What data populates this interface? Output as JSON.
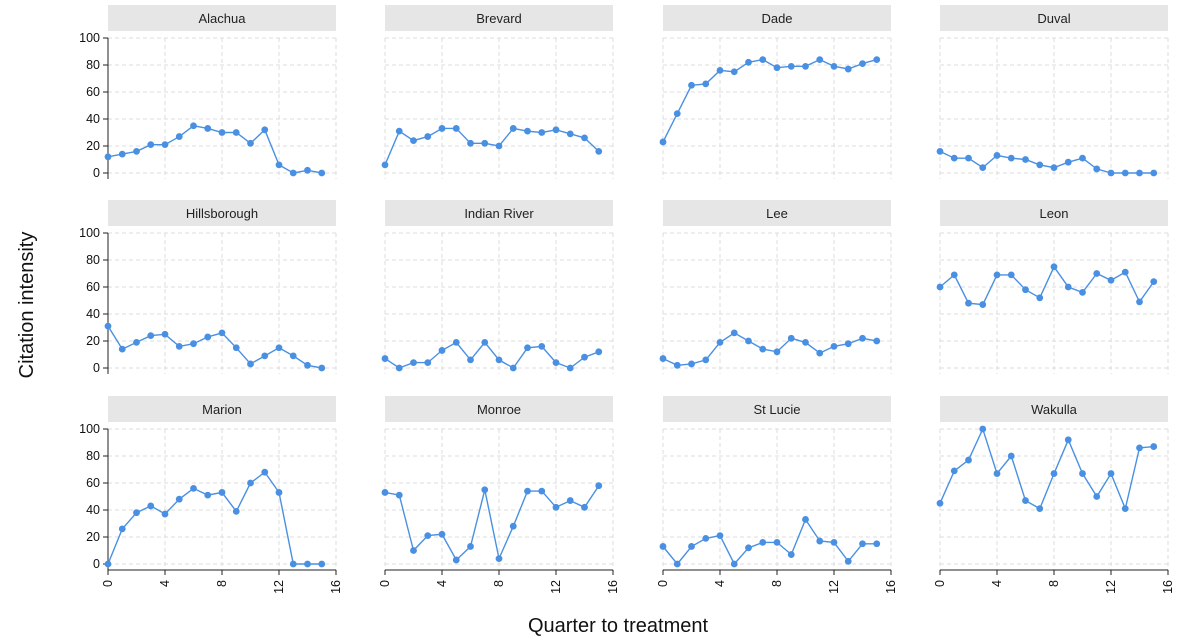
{
  "chart_data": {
    "type": "line",
    "xlabel": "Quarter to treatment",
    "ylabel": "Citation intensity",
    "xlim": [
      0,
      16
    ],
    "ylim": [
      0,
      100
    ],
    "xticks": [
      0,
      4,
      8,
      12,
      16
    ],
    "yticks": [
      0,
      20,
      40,
      60,
      80,
      100
    ],
    "grid": true,
    "line_color": "#4a90e2",
    "x": [
      0,
      1,
      2,
      3,
      4,
      5,
      6,
      7,
      8,
      9,
      10,
      11,
      12,
      13,
      14,
      15
    ],
    "panels": [
      {
        "title": "Alachua",
        "values": [
          12,
          14,
          16,
          21,
          21,
          27,
          35,
          33,
          30,
          30,
          22,
          32,
          6,
          0,
          2,
          0
        ]
      },
      {
        "title": "Brevard",
        "values": [
          6,
          31,
          24,
          27,
          33,
          33,
          22,
          22,
          20,
          33,
          31,
          30,
          32,
          29,
          26,
          16
        ]
      },
      {
        "title": "Dade",
        "values": [
          23,
          44,
          65,
          66,
          76,
          75,
          82,
          84,
          78,
          79,
          79,
          84,
          79,
          77,
          81,
          84
        ]
      },
      {
        "title": "Duval",
        "values": [
          16,
          11,
          11,
          4,
          13,
          11,
          10,
          6,
          4,
          8,
          11,
          3,
          0,
          0,
          0,
          0
        ]
      },
      {
        "title": "Hillsborough",
        "values": [
          31,
          14,
          19,
          24,
          25,
          16,
          18,
          23,
          26,
          15,
          3,
          9,
          15,
          9,
          2,
          0
        ]
      },
      {
        "title": "Indian River",
        "values": [
          7,
          0,
          4,
          4,
          13,
          19,
          6,
          19,
          6,
          0,
          15,
          16,
          4,
          0,
          8,
          12
        ]
      },
      {
        "title": "Lee",
        "values": [
          7,
          2,
          3,
          6,
          19,
          26,
          20,
          14,
          12,
          22,
          19,
          11,
          16,
          18,
          22,
          20
        ]
      },
      {
        "title": "Leon",
        "values": [
          60,
          69,
          48,
          47,
          69,
          69,
          58,
          52,
          75,
          60,
          56,
          70,
          65,
          71,
          49,
          64
        ]
      },
      {
        "title": "Marion",
        "values": [
          0,
          26,
          38,
          43,
          37,
          48,
          56,
          51,
          53,
          39,
          60,
          68,
          53,
          0,
          0,
          0
        ]
      },
      {
        "title": "Monroe",
        "values": [
          53,
          51,
          10,
          21,
          22,
          3,
          13,
          55,
          4,
          28,
          54,
          54,
          42,
          47,
          42,
          58
        ]
      },
      {
        "title": "St Lucie",
        "values": [
          13,
          0,
          13,
          19,
          21,
          0,
          12,
          16,
          16,
          7,
          33,
          17,
          16,
          2,
          15,
          15
        ]
      },
      {
        "title": "Wakulla",
        "values": [
          45,
          69,
          77,
          100,
          67,
          80,
          47,
          41,
          67,
          92,
          67,
          50,
          67,
          41,
          86,
          87
        ]
      }
    ]
  }
}
